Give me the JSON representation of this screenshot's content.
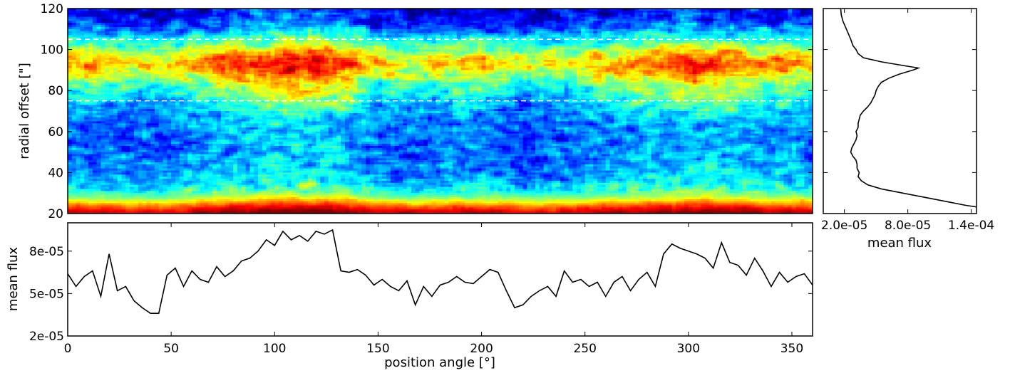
{
  "chart_data": [
    {
      "id": "heatmap",
      "type": "heatmap",
      "title": "",
      "xlabel": "",
      "ylabel": "radial offset [\"]",
      "xlim": [
        0,
        360
      ],
      "ylim": [
        20,
        120
      ],
      "x_ticks": [],
      "y_ticks": [
        20,
        40,
        60,
        80,
        100,
        120
      ],
      "y_tick_labels": [
        "20",
        "40",
        "60",
        "80",
        "100",
        "120"
      ],
      "colormap": "jet",
      "colormap_stops": [
        "#00007f",
        "#0000ff",
        "#0080ff",
        "#00ffff",
        "#80ff80",
        "#ffff00",
        "#ff8000",
        "#ff0000",
        "#7f0000"
      ],
      "reference_lines": [
        {
          "y": 105,
          "style": "dashed",
          "color": "#ffffff"
        },
        {
          "y": 75,
          "style": "dashed",
          "color": "#ffffff"
        }
      ],
      "radial_profile": {
        "r": [
          20,
          24,
          28,
          32,
          36,
          40,
          44,
          48,
          52,
          56,
          60,
          64,
          68,
          72,
          76,
          80,
          84,
          88,
          92,
          96,
          100,
          104,
          108,
          112,
          116,
          120
        ],
        "level": [
          0.97,
          0.78,
          0.52,
          0.4,
          0.32,
          0.3,
          0.27,
          0.26,
          0.25,
          0.25,
          0.26,
          0.27,
          0.3,
          0.34,
          0.38,
          0.45,
          0.52,
          0.62,
          0.72,
          0.68,
          0.55,
          0.42,
          0.3,
          0.2,
          0.14,
          0.1
        ]
      },
      "angular_modulation": {
        "angle": [
          0,
          30,
          45,
          60,
          80,
          100,
          120,
          135,
          150,
          170,
          200,
          220,
          240,
          260,
          280,
          300,
          320,
          340,
          360
        ],
        "delta": [
          0,
          -0.05,
          -0.08,
          0.0,
          0.06,
          0.12,
          0.14,
          0.08,
          -0.04,
          -0.06,
          0.0,
          -0.1,
          -0.06,
          0.0,
          0.04,
          0.1,
          0.07,
          0.02,
          0.0
        ]
      }
    },
    {
      "id": "radial-profile",
      "type": "line",
      "title": "",
      "xlabel": "mean flux",
      "ylabel": "",
      "xlim": [
        0.0,
        0.000145
      ],
      "ylim": [
        20,
        120
      ],
      "x_ticks": [
        2e-05,
        8e-05,
        0.00014
      ],
      "x_tick_labels": [
        "2.0e-05",
        "8.0e-05",
        "1.4e-04"
      ],
      "y_ticks": [
        20,
        40,
        60,
        80,
        100,
        120
      ],
      "y": [
        120,
        117,
        114,
        111,
        108,
        105,
        102,
        100,
        98,
        96,
        94,
        92,
        91,
        90,
        88,
        86,
        84,
        82,
        80,
        78,
        76,
        74,
        72,
        70,
        68,
        66,
        64,
        62,
        60,
        58,
        56,
        54,
        52,
        50,
        48,
        46,
        44,
        42,
        40,
        38,
        36,
        34,
        32,
        30,
        28,
        26,
        24,
        23
      ],
      "x": [
        1.65e-05,
        1.7e-05,
        1.85e-05,
        2.1e-05,
        2.35e-05,
        2.6e-05,
        2.8e-05,
        3.1e-05,
        3.3e-05,
        3.8e-05,
        5.5e-05,
        7.8e-05,
        9e-05,
        8.5e-05,
        7.2e-05,
        6.2e-05,
        5.5e-05,
        5.2e-05,
        5e-05,
        4.9e-05,
        4.7e-05,
        4.5e-05,
        4.2e-05,
        3.8e-05,
        3.5e-05,
        3.4e-05,
        3.3e-05,
        3.3e-05,
        3.1e-05,
        3.2e-05,
        3.1e-05,
        2.9e-05,
        2.7e-05,
        2.6e-05,
        2.8e-05,
        3.1e-05,
        3.2e-05,
        3.2e-05,
        3.4e-05,
        3.3e-05,
        3.6e-05,
        4.2e-05,
        5.5e-05,
        7.5e-05,
        9.5e-05,
        0.000115,
        0.000135,
        0.000148
      ]
    },
    {
      "id": "angular-profile",
      "type": "line",
      "title": "",
      "xlabel": "position angle [°]",
      "ylabel": "mean flux",
      "xlim": [
        0,
        360
      ],
      "ylim": [
        2e-05,
        0.0001
      ],
      "x_ticks": [
        0,
        50,
        100,
        150,
        200,
        250,
        300,
        350
      ],
      "x_tick_labels": [
        "0",
        "50",
        "100",
        "150",
        "200",
        "250",
        "300",
        "350"
      ],
      "y_ticks": [
        2e-05,
        5e-05,
        8e-05
      ],
      "y_tick_labels": [
        "2e-05",
        "5e-05",
        "8e-05"
      ],
      "x": [
        0,
        4,
        8,
        12,
        16,
        20,
        24,
        28,
        32,
        36,
        40,
        44,
        48,
        52,
        56,
        60,
        64,
        68,
        72,
        76,
        80,
        84,
        88,
        92,
        96,
        100,
        104,
        108,
        112,
        116,
        120,
        124,
        128,
        132,
        136,
        140,
        144,
        148,
        152,
        156,
        160,
        164,
        168,
        172,
        176,
        180,
        184,
        188,
        192,
        196,
        200,
        204,
        208,
        212,
        216,
        220,
        224,
        228,
        232,
        236,
        240,
        244,
        248,
        252,
        256,
        260,
        264,
        268,
        272,
        276,
        280,
        284,
        288,
        292,
        296,
        300,
        304,
        308,
        312,
        316,
        320,
        324,
        328,
        332,
        336,
        340,
        344,
        348,
        352,
        356,
        360
      ],
      "y": [
        6.4e-05,
        5.5e-05,
        6.2e-05,
        6.6e-05,
        4.8e-05,
        7.8e-05,
        5.2e-05,
        5.5e-05,
        4.5e-05,
        4e-05,
        3.6e-05,
        3.6e-05,
        6.3e-05,
        6.8e-05,
        5.5e-05,
        6.6e-05,
        6e-05,
        5.8e-05,
        6.9e-05,
        6.2e-05,
        6.6e-05,
        7.3e-05,
        7.5e-05,
        8e-05,
        8.8e-05,
        8.4e-05,
        9.4e-05,
        8.8e-05,
        9.1e-05,
        8.7e-05,
        9.4e-05,
        9.2e-05,
        9.5e-05,
        6.6e-05,
        6.5e-05,
        6.7e-05,
        6.3e-05,
        5.6e-05,
        6e-05,
        5.5e-05,
        5.2e-05,
        5.9e-05,
        4.2e-05,
        5.5e-05,
        4.8e-05,
        5.6e-05,
        5.8e-05,
        6.2e-05,
        5.8e-05,
        5.7e-05,
        6.2e-05,
        6.7e-05,
        6.5e-05,
        5.2e-05,
        4e-05,
        4.2e-05,
        4.8e-05,
        5.2e-05,
        5.5e-05,
        4.8e-05,
        6.6e-05,
        5.8e-05,
        6e-05,
        5.5e-05,
        5.8e-05,
        4.8e-05,
        5.8e-05,
        6.2e-05,
        5.2e-05,
        6e-05,
        6.5e-05,
        5.5e-05,
        7.8e-05,
        8.5e-05,
        8.2e-05,
        8e-05,
        7.8e-05,
        7.5e-05,
        6.8e-05,
        8.6e-05,
        7.2e-05,
        7e-05,
        6.3e-05,
        7.5e-05,
        6.6e-05,
        5.5e-05,
        6.5e-05,
        5.8e-05,
        6.2e-05,
        6.4e-05,
        5.6e-05
      ]
    }
  ]
}
